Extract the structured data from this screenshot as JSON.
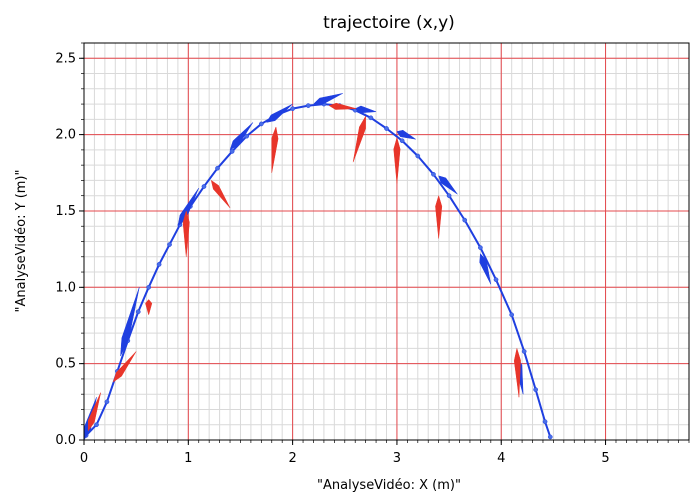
{
  "chart_data": {
    "type": "line",
    "title": "trajectoire (x,y)",
    "xlabel": "\"AnalyseVidéo: X (m)\"",
    "ylabel": "\"AnalyseVidéo: Y (m)\"",
    "xlim": [
      0,
      5.8
    ],
    "ylim": [
      0,
      2.6
    ],
    "xticks": [
      "0",
      "1",
      "2",
      "3",
      "4",
      "5"
    ],
    "yticks": [
      "0.0",
      "0.5",
      "1.0",
      "1.5",
      "2.0",
      "2.5"
    ],
    "grid": true,
    "colors": {
      "trajectory": "#1f3fe0",
      "points": "#4a6fe8",
      "accel_vectors": "#e8352a",
      "major_grid": "#e5484d",
      "minor_grid": "#d9d9d9"
    },
    "series": [
      {
        "values": [
          [
            0.02,
            0.03
          ],
          [
            0.12,
            0.1
          ],
          [
            0.22,
            0.25
          ],
          [
            0.32,
            0.45
          ],
          [
            0.42,
            0.65
          ],
          [
            0.52,
            0.84
          ],
          [
            0.62,
            1.0
          ],
          [
            0.72,
            1.15
          ],
          [
            0.82,
            1.28
          ],
          [
            0.92,
            1.41
          ],
          [
            1.02,
            1.53
          ],
          [
            1.15,
            1.66
          ],
          [
            1.28,
            1.78
          ],
          [
            1.42,
            1.89
          ],
          [
            1.56,
            1.99
          ],
          [
            1.7,
            2.07
          ],
          [
            1.85,
            2.13
          ],
          [
            2.0,
            2.17
          ],
          [
            2.15,
            2.19
          ],
          [
            2.3,
            2.2
          ],
          [
            2.45,
            2.19
          ],
          [
            2.6,
            2.16
          ],
          [
            2.75,
            2.11
          ],
          [
            2.9,
            2.04
          ],
          [
            3.05,
            1.96
          ],
          [
            3.2,
            1.86
          ],
          [
            3.35,
            1.74
          ],
          [
            3.5,
            1.6
          ],
          [
            3.65,
            1.44
          ],
          [
            3.8,
            1.26
          ],
          [
            3.95,
            1.05
          ],
          [
            4.1,
            0.82
          ],
          [
            4.22,
            0.58
          ],
          [
            4.33,
            0.33
          ],
          [
            4.42,
            0.12
          ],
          [
            4.47,
            0.02
          ]
        ]
      }
    ],
    "velocity_vectors": [
      {
        "x": 0.0,
        "y": 0.0,
        "dx": 0.12,
        "dy": 0.28
      },
      {
        "x": 0.35,
        "y": 0.55,
        "dx": 0.18,
        "dy": 0.45
      },
      {
        "x": 0.9,
        "y": 1.4,
        "dx": 0.2,
        "dy": 0.25
      },
      {
        "x": 1.4,
        "y": 1.9,
        "dx": 0.22,
        "dy": 0.18
      },
      {
        "x": 1.75,
        "y": 2.08,
        "dx": 0.25,
        "dy": 0.12
      },
      {
        "x": 2.2,
        "y": 2.2,
        "dx": 0.28,
        "dy": 0.07
      },
      {
        "x": 2.6,
        "y": 2.17,
        "dx": 0.2,
        "dy": -0.02
      },
      {
        "x": 3.0,
        "y": 2.02,
        "dx": 0.18,
        "dy": -0.05
      },
      {
        "x": 3.4,
        "y": 1.73,
        "dx": 0.18,
        "dy": -0.12
      },
      {
        "x": 3.8,
        "y": 1.22,
        "dx": 0.1,
        "dy": -0.2
      },
      {
        "x": 4.15,
        "y": 0.55,
        "dx": 0.06,
        "dy": -0.25
      }
    ],
    "acceleration_vectors": [
      {
        "x": 0.04,
        "y": 0.06,
        "dx": 0.12,
        "dy": 0.25
      },
      {
        "x": 0.28,
        "y": 0.38,
        "dx": 0.22,
        "dy": 0.2
      },
      {
        "x": 0.62,
        "y": 0.92,
        "dx": 0.0,
        "dy": -0.1
      },
      {
        "x": 0.98,
        "y": 1.5,
        "dx": 0.0,
        "dy": -0.3
      },
      {
        "x": 1.22,
        "y": 1.7,
        "dx": 0.18,
        "dy": -0.18
      },
      {
        "x": 1.84,
        "y": 2.05,
        "dx": -0.04,
        "dy": -0.3
      },
      {
        "x": 2.35,
        "y": 2.19,
        "dx": 0.26,
        "dy": -0.02
      },
      {
        "x": 2.7,
        "y": 2.12,
        "dx": -0.12,
        "dy": -0.3
      },
      {
        "x": 3.0,
        "y": 1.98,
        "dx": 0.0,
        "dy": -0.3
      },
      {
        "x": 3.4,
        "y": 1.6,
        "dx": 0.0,
        "dy": -0.28
      },
      {
        "x": 4.15,
        "y": 0.6,
        "dx": 0.02,
        "dy": -0.32
      }
    ]
  }
}
